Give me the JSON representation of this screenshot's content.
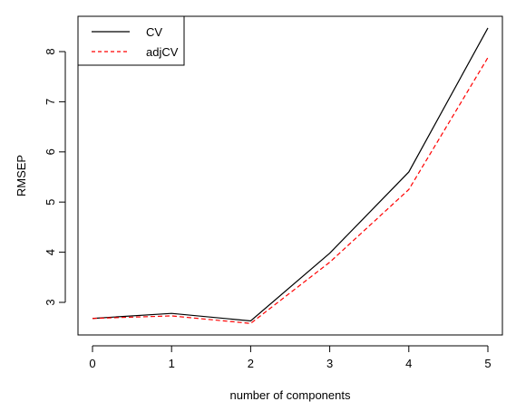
{
  "chart_data": {
    "type": "line",
    "title": "",
    "xlabel": "number of components",
    "ylabel": "RMSEP",
    "x": [
      0,
      1,
      2,
      3,
      4,
      5
    ],
    "x_ticks": [
      "0",
      "1",
      "2",
      "3",
      "4",
      "5"
    ],
    "y_ticks": [
      "3",
      "4",
      "5",
      "6",
      "7",
      "8"
    ],
    "xlim": [
      0,
      5
    ],
    "ylim": [
      2.7,
      8.5
    ],
    "grid": false,
    "legend_position": "top-left",
    "series": [
      {
        "name": "CV",
        "values": [
          2.68,
          2.78,
          2.63,
          3.98,
          5.6,
          8.47
        ],
        "color": "#000000",
        "style": "solid"
      },
      {
        "name": "adjCV",
        "values": [
          2.68,
          2.73,
          2.58,
          3.8,
          5.25,
          7.88
        ],
        "color": "#ff0000",
        "style": "dashed"
      }
    ]
  }
}
